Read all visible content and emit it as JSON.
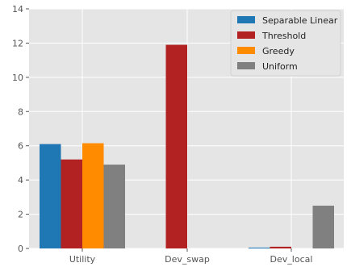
{
  "chart_data": {
    "type": "bar",
    "categories": [
      "Utility",
      "Dev_swap",
      "Dev_local"
    ],
    "series": [
      {
        "name": "Separable Linear",
        "values": [
          6.1,
          0.0,
          0.05
        ],
        "color": "#1f77b4"
      },
      {
        "name": "Threshold",
        "values": [
          5.2,
          11.9,
          0.1
        ],
        "color": "#b22222"
      },
      {
        "name": "Greedy",
        "values": [
          6.15,
          0.0,
          0.0
        ],
        "color": "#ff8c00"
      },
      {
        "name": "Uniform",
        "values": [
          4.9,
          0.0,
          2.5
        ],
        "color": "#808080"
      }
    ],
    "ylim": [
      0,
      14
    ],
    "yticks": [
      0,
      2,
      4,
      6,
      8,
      10,
      12,
      14
    ],
    "title": "",
    "xlabel": "",
    "ylabel": "",
    "grid": true,
    "legend_position": "top-right",
    "background_color": "#e5e5e5",
    "grid_color": "#ffffff"
  }
}
